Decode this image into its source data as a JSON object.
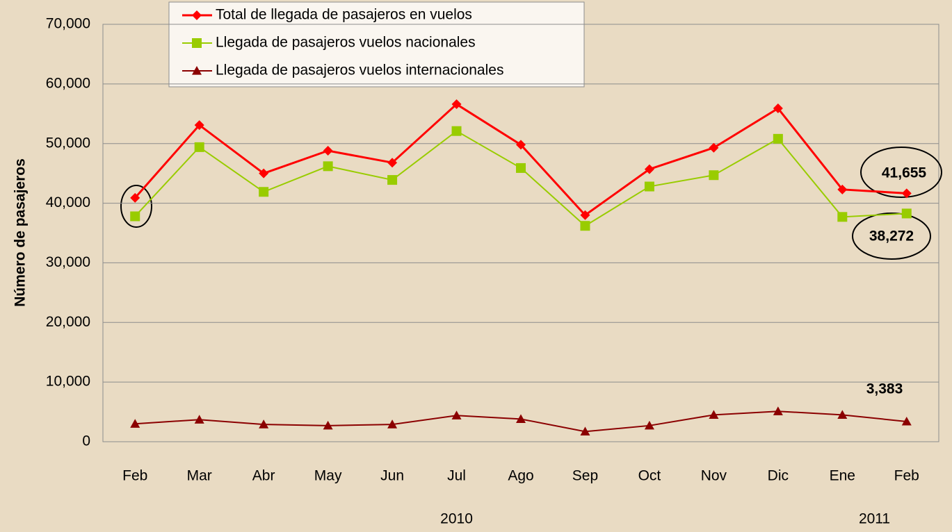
{
  "chart_data": {
    "type": "line",
    "y_label": "Número de pasajeros",
    "categories": [
      "Feb",
      "Mar",
      "Abr",
      "May",
      "Jun",
      "Jul",
      "Ago",
      "Sep",
      "Oct",
      "Nov",
      "Dic",
      "Ene",
      "Feb"
    ],
    "year_labels": [
      "2010",
      "2011"
    ],
    "series": [
      {
        "name": "Total de llegada de pasajeros en vuelos",
        "color": "#ff0000",
        "marker": "diamond",
        "values": [
          40900,
          53100,
          45000,
          48800,
          46800,
          56600,
          49800,
          38000,
          45700,
          49300,
          55900,
          42300,
          41655
        ],
        "value_labels": [
          null,
          null,
          null,
          null,
          null,
          null,
          null,
          null,
          null,
          null,
          null,
          null,
          "41,655"
        ]
      },
      {
        "name": "Llegada de pasajeros vuelos nacionales",
        "color": "#99cc00",
        "marker": "square",
        "values": [
          37800,
          49400,
          41900,
          46200,
          43900,
          52100,
          45900,
          36200,
          42800,
          44700,
          50800,
          37700,
          38272
        ],
        "value_labels": [
          null,
          null,
          null,
          null,
          null,
          null,
          null,
          null,
          null,
          null,
          null,
          null,
          "38,272"
        ]
      },
      {
        "name": "Llegada de pasajeros vuelos internacionales",
        "color": "#8b0000",
        "marker": "triangle",
        "values": [
          3000,
          3700,
          2900,
          2700,
          2900,
          4400,
          3800,
          1700,
          2700,
          4500,
          5100,
          4500,
          3383
        ],
        "value_labels": [
          null,
          null,
          null,
          null,
          null,
          null,
          null,
          null,
          null,
          null,
          null,
          null,
          "3,383"
        ]
      }
    ],
    "ylim": [
      0,
      70000
    ],
    "yticks": [
      0,
      {
        "value": 10000,
        "label": "10,000"
      },
      {
        "value": 20000,
        "label": "20,000"
      },
      {
        "value": 30000,
        "label": "30,000"
      },
      {
        "value": 40000,
        "label": "40,000"
      },
      {
        "value": 50000,
        "label": "50,000"
      },
      {
        "value": 60000,
        "label": "60,000"
      },
      {
        "value": 70000,
        "label": "70,000"
      }
    ],
    "grid": true
  }
}
